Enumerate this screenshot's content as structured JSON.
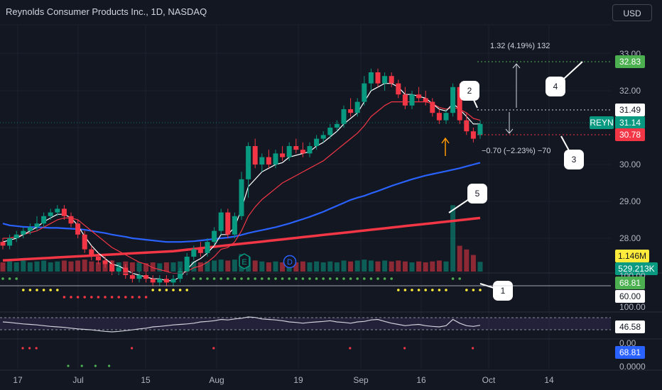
{
  "header": {
    "title": "Reynolds Consumer Products Inc., 1D, NASDAQ",
    "currency_button": "USD"
  },
  "price_axis": {
    "ticks": [
      {
        "value": 33,
        "label": "33.00"
      },
      {
        "value": 32,
        "label": "32.00"
      },
      {
        "value": 30,
        "label": "30.00"
      },
      {
        "value": 29,
        "label": "29.00"
      },
      {
        "value": 28,
        "label": "28.00"
      }
    ],
    "labels": {
      "target_high": {
        "text": "32.83",
        "color": "#4caf50"
      },
      "entry": {
        "text": "31.49",
        "color": "#ffffff"
      },
      "ticker": {
        "text": "REYN",
        "color": "#089981"
      },
      "last_price": {
        "text": "31.14",
        "color": "#089981"
      },
      "stop_low": {
        "text": "30.78",
        "color": "#f23645"
      },
      "volume_ma": {
        "text": "1.146M",
        "color": "#ffeb3b"
      },
      "volume": {
        "text": "529.213K",
        "color": "#089981"
      }
    }
  },
  "measure": {
    "up_text": "1.32 (4.19%) 132",
    "down_text": "−0.70 (−2.23%) −70"
  },
  "callouts": [
    "1",
    "2",
    "3",
    "4",
    "5"
  ],
  "event_markers": [
    "E",
    "D"
  ],
  "oscillator_1": {
    "axis_top": "100.00",
    "value_label": "68.81",
    "level_label": "60.00"
  },
  "oscillator_2": {
    "ticks": [
      "100.00",
      "0.00"
    ],
    "value_label": "46.58"
  },
  "oscillator_3": {
    "value_label": "68.81",
    "axis_bottom": "0.0000"
  },
  "time_axis": [
    "17",
    "Jul",
    "15",
    "Aug",
    "19",
    "Sep",
    "16",
    "Oct",
    "14"
  ],
  "colors": {
    "background": "#131722",
    "up": "#089981",
    "down": "#f23645",
    "ema_fast": "#ffffff",
    "ema_mid": "#f23645",
    "sma_50": "#2962ff",
    "sma_200": "#f23645"
  },
  "chart_data": {
    "type": "candlestick",
    "title": "Reynolds Consumer Products Inc., 1D, NASDAQ",
    "ylim": [
      27.0,
      33.2
    ],
    "candles": [
      [
        27.9,
        28.0,
        27.7,
        27.8
      ],
      [
        27.8,
        28.1,
        27.7,
        28.0
      ],
      [
        28.0,
        28.2,
        27.9,
        28.1
      ],
      [
        28.1,
        28.3,
        28.0,
        28.2
      ],
      [
        28.2,
        28.4,
        28.1,
        28.3
      ],
      [
        28.3,
        28.6,
        28.2,
        28.4
      ],
      [
        28.4,
        28.7,
        28.3,
        28.6
      ],
      [
        28.6,
        28.8,
        28.5,
        28.7
      ],
      [
        28.7,
        28.9,
        28.6,
        28.8
      ],
      [
        28.8,
        28.9,
        28.5,
        28.6
      ],
      [
        28.6,
        28.7,
        28.3,
        28.4
      ],
      [
        28.4,
        28.5,
        28.0,
        28.1
      ],
      [
        28.1,
        28.2,
        27.6,
        27.7
      ],
      [
        27.7,
        27.8,
        27.4,
        27.5
      ],
      [
        27.5,
        27.6,
        27.3,
        27.4
      ],
      [
        27.4,
        27.5,
        27.2,
        27.3
      ],
      [
        27.3,
        27.4,
        27.0,
        27.1
      ],
      [
        27.1,
        27.3,
        27.0,
        27.2
      ],
      [
        27.2,
        27.3,
        26.9,
        27.0
      ],
      [
        27.0,
        27.1,
        26.8,
        26.9
      ],
      [
        26.9,
        27.1,
        26.8,
        27.0
      ],
      [
        27.0,
        27.1,
        26.8,
        26.9
      ],
      [
        26.9,
        27.0,
        26.7,
        26.8
      ],
      [
        26.8,
        27.0,
        26.7,
        26.9
      ],
      [
        26.9,
        27.0,
        26.7,
        26.8
      ],
      [
        26.8,
        27.0,
        26.7,
        26.9
      ],
      [
        26.9,
        27.2,
        26.8,
        27.1
      ],
      [
        27.1,
        27.6,
        27.0,
        27.5
      ],
      [
        27.5,
        27.8,
        27.4,
        27.7
      ],
      [
        27.7,
        27.9,
        27.5,
        27.6
      ],
      [
        27.6,
        28.0,
        27.5,
        27.9
      ],
      [
        27.9,
        28.3,
        27.8,
        28.2
      ],
      [
        28.2,
        28.8,
        28.1,
        28.7
      ],
      [
        28.7,
        28.8,
        28.0,
        28.1
      ],
      [
        28.1,
        28.7,
        28.0,
        28.6
      ],
      [
        28.6,
        29.8,
        28.5,
        29.6
      ],
      [
        29.6,
        30.6,
        29.1,
        30.5
      ],
      [
        30.5,
        30.7,
        29.9,
        30.0
      ],
      [
        30.0,
        30.3,
        29.8,
        30.2
      ],
      [
        30.2,
        30.4,
        29.9,
        30.0
      ],
      [
        30.0,
        30.4,
        29.9,
        30.3
      ],
      [
        30.3,
        30.5,
        30.1,
        30.2
      ],
      [
        30.2,
        30.6,
        30.1,
        30.5
      ],
      [
        30.5,
        30.7,
        30.3,
        30.4
      ],
      [
        30.4,
        30.6,
        30.2,
        30.3
      ],
      [
        30.3,
        30.6,
        30.2,
        30.5
      ],
      [
        30.5,
        30.8,
        30.4,
        30.7
      ],
      [
        30.7,
        30.9,
        30.6,
        30.8
      ],
      [
        30.8,
        31.1,
        30.7,
        31.0
      ],
      [
        31.0,
        31.2,
        30.9,
        31.1
      ],
      [
        31.1,
        31.6,
        31.0,
        31.5
      ],
      [
        31.5,
        31.8,
        31.3,
        31.4
      ],
      [
        31.4,
        31.8,
        31.3,
        31.7
      ],
      [
        31.7,
        32.4,
        31.6,
        32.2
      ],
      [
        32.2,
        32.6,
        32.0,
        32.5
      ],
      [
        32.5,
        32.6,
        32.1,
        32.2
      ],
      [
        32.2,
        32.5,
        32.0,
        32.4
      ],
      [
        32.4,
        32.5,
        32.1,
        32.2
      ],
      [
        32.2,
        32.3,
        31.8,
        31.9
      ],
      [
        31.9,
        32.1,
        31.5,
        31.6
      ],
      [
        31.6,
        32.0,
        31.5,
        31.9
      ],
      [
        31.9,
        32.1,
        31.7,
        31.8
      ],
      [
        31.8,
        32.0,
        31.6,
        31.7
      ],
      [
        31.7,
        31.8,
        31.3,
        31.4
      ],
      [
        31.4,
        31.5,
        31.1,
        31.2
      ],
      [
        31.2,
        31.5,
        31.1,
        31.4
      ],
      [
        31.4,
        32.2,
        31.3,
        32.1
      ],
      [
        32.1,
        32.2,
        31.1,
        31.2
      ],
      [
        31.2,
        31.4,
        30.8,
        30.9
      ],
      [
        30.9,
        31.0,
        30.6,
        30.7
      ],
      [
        30.8,
        31.2,
        30.7,
        31.1
      ]
    ],
    "volume": [
      0.5,
      0.55,
      0.5,
      0.6,
      0.5,
      0.55,
      0.6,
      0.5,
      0.55,
      0.6,
      0.55,
      0.6,
      0.65,
      0.55,
      0.5,
      0.55,
      0.6,
      0.5,
      0.55,
      0.5,
      0.5,
      0.45,
      0.5,
      0.45,
      0.5,
      0.5,
      0.55,
      0.6,
      0.55,
      0.5,
      0.55,
      0.6,
      0.65,
      0.6,
      0.65,
      0.95,
      0.8,
      0.6,
      0.55,
      0.5,
      0.55,
      0.5,
      0.55,
      0.5,
      0.55,
      0.5,
      0.55,
      0.5,
      0.55,
      0.5,
      0.6,
      0.55,
      0.6,
      0.65,
      0.6,
      0.55,
      0.6,
      0.55,
      0.6,
      0.55,
      0.5,
      0.55,
      0.5,
      0.55,
      0.6,
      0.55,
      3.6,
      1.4,
      1.2,
      0.9,
      0.53
    ],
    "ema_fast": [
      27.9,
      27.95,
      28.0,
      28.1,
      28.2,
      28.3,
      28.45,
      28.55,
      28.65,
      28.65,
      28.55,
      28.35,
      28.05,
      27.8,
      27.6,
      27.45,
      27.3,
      27.25,
      27.15,
      27.05,
      27.0,
      26.95,
      26.9,
      26.9,
      26.85,
      26.85,
      26.95,
      27.15,
      27.35,
      27.45,
      27.6,
      27.8,
      28.1,
      28.1,
      28.3,
      28.8,
      29.4,
      29.6,
      29.8,
      29.9,
      30.0,
      30.05,
      30.2,
      30.25,
      30.3,
      30.35,
      30.5,
      30.6,
      30.75,
      30.9,
      31.1,
      31.25,
      31.4,
      31.7,
      32.0,
      32.1,
      32.2,
      32.2,
      32.1,
      31.9,
      31.9,
      31.85,
      31.8,
      31.65,
      31.5,
      31.45,
      31.65,
      31.5,
      31.3,
      31.1,
      31.1
    ],
    "ema_mid": [
      28.0,
      28.0,
      28.05,
      28.1,
      28.15,
      28.2,
      28.3,
      28.4,
      28.5,
      28.55,
      28.55,
      28.5,
      28.35,
      28.2,
      28.05,
      27.9,
      27.75,
      27.65,
      27.55,
      27.45,
      27.35,
      27.3,
      27.2,
      27.15,
      27.1,
      27.05,
      27.05,
      27.1,
      27.2,
      27.25,
      27.35,
      27.5,
      27.7,
      27.75,
      27.9,
      28.2,
      28.6,
      28.85,
      29.05,
      29.2,
      29.35,
      29.5,
      29.6,
      29.7,
      29.8,
      29.9,
      30.0,
      30.1,
      30.25,
      30.4,
      30.55,
      30.7,
      30.85,
      31.05,
      31.3,
      31.45,
      31.6,
      31.7,
      31.7,
      31.7,
      31.7,
      31.7,
      31.7,
      31.65,
      31.55,
      31.5,
      31.55,
      31.5,
      31.4,
      31.25,
      31.2
    ],
    "sma_50": [
      28.4,
      28.35,
      28.33,
      28.31,
      28.3,
      28.3,
      28.29,
      28.28,
      28.28,
      28.27,
      28.26,
      28.25,
      28.23,
      28.2,
      28.17,
      28.14,
      28.1,
      28.07,
      28.04,
      28.0,
      27.98,
      27.96,
      27.94,
      27.92,
      27.9,
      27.9,
      27.9,
      27.91,
      27.92,
      27.94,
      27.96,
      27.98,
      28.0,
      28.02,
      28.05,
      28.09,
      28.14,
      28.18,
      28.22,
      28.26,
      28.3,
      28.35,
      28.4,
      28.46,
      28.52,
      28.58,
      28.65,
      28.72,
      28.8,
      28.88,
      28.96,
      29.04,
      29.1,
      29.15,
      29.22,
      29.28,
      29.35,
      29.42,
      29.48,
      29.54,
      29.6,
      29.65,
      29.7,
      29.74,
      29.78,
      29.82,
      29.86,
      29.9,
      29.95,
      30.0,
      30.05
    ],
    "sma_200": [
      27.4,
      27.41,
      27.42,
      27.43,
      27.44,
      27.45,
      27.46,
      27.47,
      27.48,
      27.49,
      27.5,
      27.51,
      27.52,
      27.53,
      27.54,
      27.55,
      27.56,
      27.57,
      27.58,
      27.59,
      27.6,
      27.61,
      27.62,
      27.63,
      27.64,
      27.65,
      27.67,
      27.69,
      27.71,
      27.73,
      27.75,
      27.77,
      27.79,
      27.81,
      27.83,
      27.85,
      27.87,
      27.89,
      27.91,
      27.93,
      27.95,
      27.97,
      27.99,
      28.01,
      28.03,
      28.05,
      28.07,
      28.09,
      28.11,
      28.13,
      28.15,
      28.17,
      28.19,
      28.21,
      28.23,
      28.25,
      28.27,
      28.29,
      28.31,
      28.33,
      28.35,
      28.37,
      28.39,
      28.41,
      28.43,
      28.45,
      28.47,
      28.49,
      28.51,
      28.53,
      28.55
    ],
    "osc2_values": [
      60,
      58,
      55,
      52,
      50,
      48,
      45,
      42,
      40,
      38,
      35,
      32,
      30,
      28,
      25,
      22,
      20,
      22,
      25,
      28,
      32,
      35,
      40,
      42,
      45,
      48,
      50,
      52,
      55,
      60,
      62,
      65,
      70,
      68,
      72,
      75,
      80,
      78,
      72,
      70,
      68,
      65,
      60,
      58,
      55,
      58,
      60,
      62,
      65,
      60,
      58,
      55,
      60,
      62,
      68,
      70,
      62,
      55,
      50,
      45,
      48,
      50,
      45,
      42,
      40,
      45,
      70,
      55,
      45,
      42,
      46.58
    ]
  }
}
